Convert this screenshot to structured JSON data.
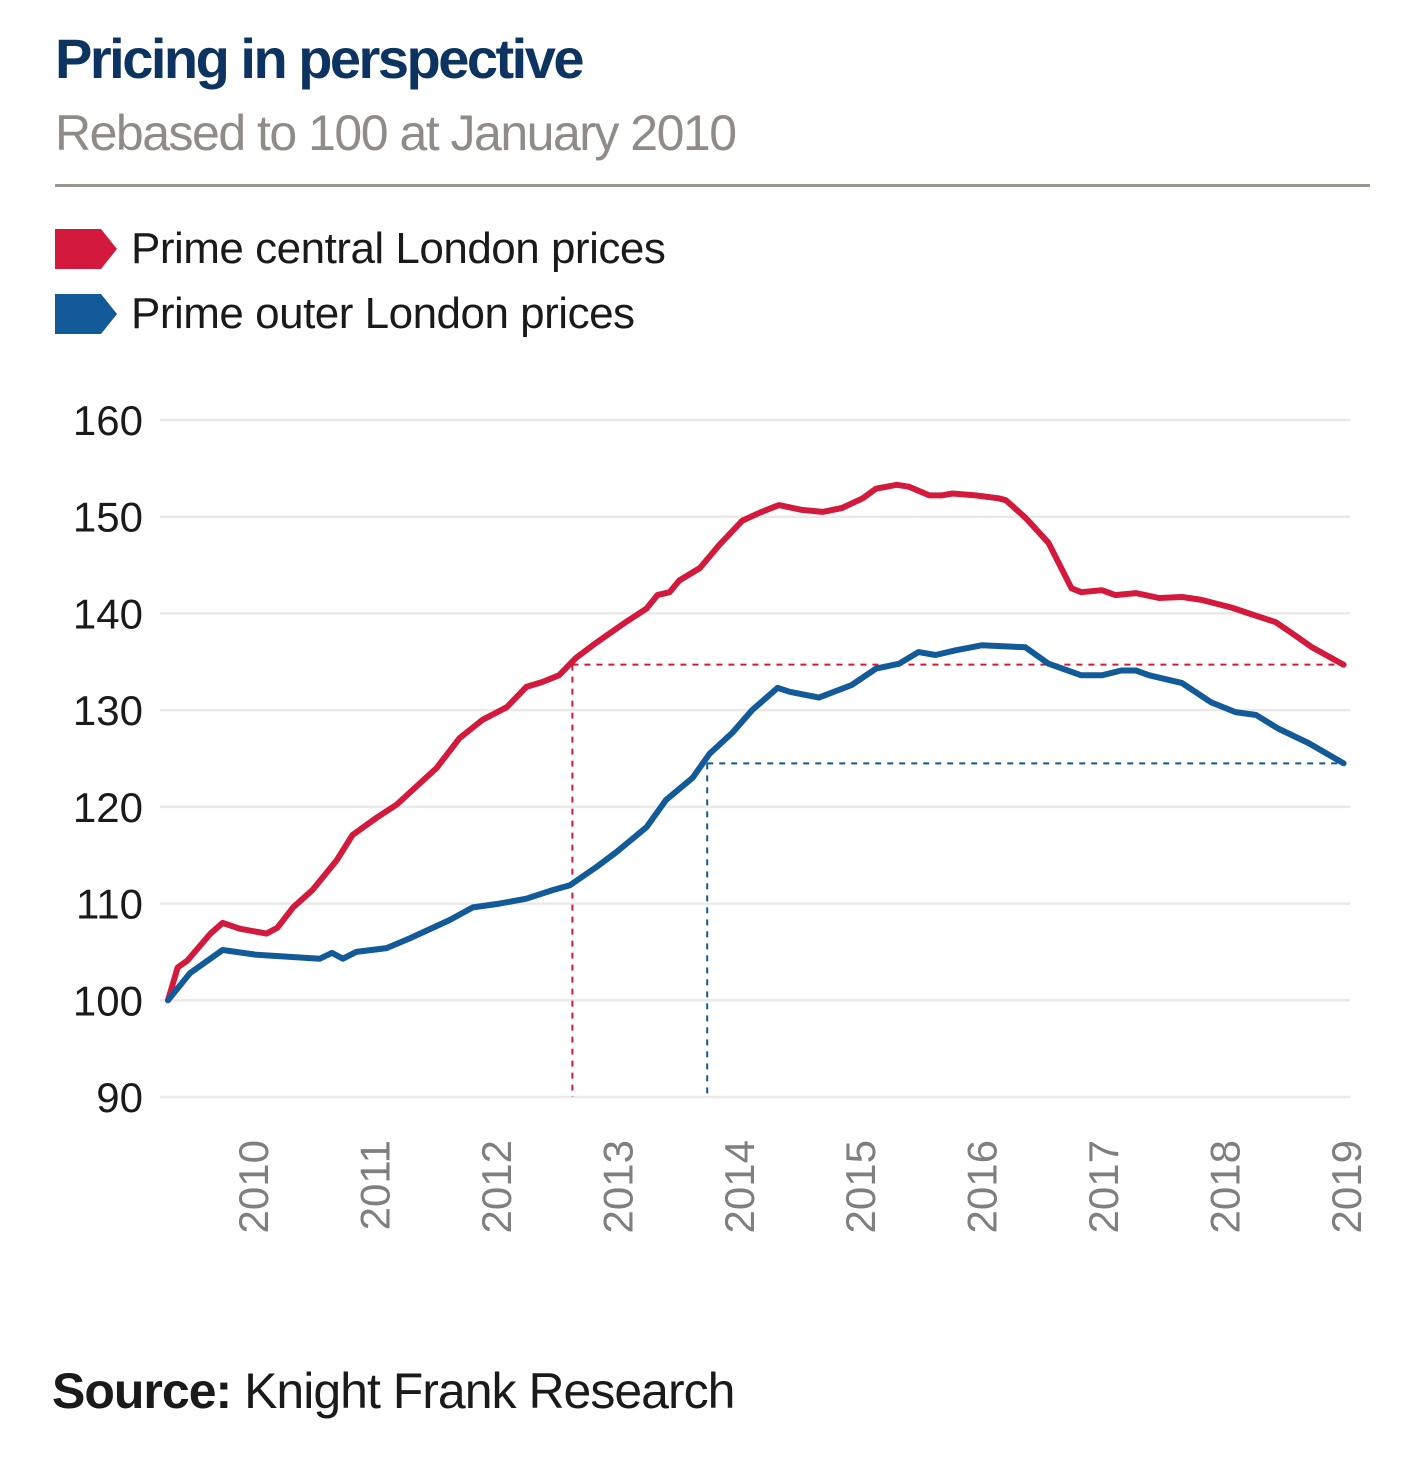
{
  "header": {
    "title": "Pricing in perspective",
    "subtitle": "Rebased to 100 at January 2010"
  },
  "legend": [
    {
      "label": "Prime central London prices",
      "color": "#d31a3c"
    },
    {
      "label": "Prime outer London prices",
      "color": "#125a98"
    }
  ],
  "footer": {
    "source_label": "Source:",
    "source_text": "Knight Frank Research"
  },
  "chart_data": {
    "type": "line",
    "title": "Pricing in perspective",
    "subtitle": "Rebased to 100 at January 2010",
    "xlabel": "",
    "ylabel": "",
    "x_unit": "decimal year",
    "xlim": [
      2010.0,
      2019.7
    ],
    "ylim": [
      90,
      160
    ],
    "yticks": [
      90,
      100,
      110,
      120,
      130,
      140,
      150,
      160
    ],
    "xticks": [
      {
        "label": "2010",
        "x": 2010.7
      },
      {
        "label": "2011",
        "x": 2011.7
      },
      {
        "label": "2012",
        "x": 2012.7
      },
      {
        "label": "2013",
        "x": 2013.7
      },
      {
        "label": "2014",
        "x": 2014.7
      },
      {
        "label": "2015",
        "x": 2015.7
      },
      {
        "label": "2016",
        "x": 2016.7
      },
      {
        "label": "2017",
        "x": 2017.7
      },
      {
        "label": "2018",
        "x": 2018.7
      },
      {
        "label": "2019",
        "x": 2019.7
      }
    ],
    "grid": "horizontal",
    "legend_position": "top-left",
    "series": [
      {
        "name": "Prime central London prices",
        "color": "#d31a3c",
        "points": [
          [
            2010.0,
            100.0
          ],
          [
            2010.08,
            103.4
          ],
          [
            2010.16,
            104.1
          ],
          [
            2010.35,
            106.9
          ],
          [
            2010.45,
            108.0
          ],
          [
            2010.59,
            107.4
          ],
          [
            2010.81,
            106.9
          ],
          [
            2010.9,
            107.5
          ],
          [
            2011.03,
            109.6
          ],
          [
            2011.19,
            111.4
          ],
          [
            2011.39,
            114.5
          ],
          [
            2011.52,
            117.1
          ],
          [
            2011.72,
            118.9
          ],
          [
            2011.88,
            120.2
          ],
          [
            2012.01,
            121.7
          ],
          [
            2012.21,
            124.0
          ],
          [
            2012.4,
            127.1
          ],
          [
            2012.59,
            129.0
          ],
          [
            2012.79,
            130.3
          ],
          [
            2012.95,
            132.4
          ],
          [
            2013.08,
            132.9
          ],
          [
            2013.22,
            133.6
          ],
          [
            2013.36,
            135.4
          ],
          [
            2013.53,
            137.0
          ],
          [
            2013.77,
            139.1
          ],
          [
            2013.94,
            140.5
          ],
          [
            2014.03,
            141.9
          ],
          [
            2014.13,
            142.2
          ],
          [
            2014.21,
            143.4
          ],
          [
            2014.38,
            144.7
          ],
          [
            2014.54,
            147.1
          ],
          [
            2014.73,
            149.6
          ],
          [
            2014.87,
            150.4
          ],
          [
            2015.03,
            151.2
          ],
          [
            2015.22,
            150.7
          ],
          [
            2015.39,
            150.5
          ],
          [
            2015.55,
            150.9
          ],
          [
            2015.72,
            151.9
          ],
          [
            2015.83,
            152.9
          ],
          [
            2016.0,
            153.3
          ],
          [
            2016.1,
            153.1
          ],
          [
            2016.27,
            152.2
          ],
          [
            2016.37,
            152.2
          ],
          [
            2016.46,
            152.4
          ],
          [
            2016.65,
            152.2
          ],
          [
            2016.84,
            151.9
          ],
          [
            2016.9,
            151.7
          ],
          [
            2017.06,
            149.9
          ],
          [
            2017.25,
            147.3
          ],
          [
            2017.44,
            142.6
          ],
          [
            2017.52,
            142.2
          ],
          [
            2017.69,
            142.4
          ],
          [
            2017.8,
            141.9
          ],
          [
            2017.97,
            142.1
          ],
          [
            2018.16,
            141.6
          ],
          [
            2018.35,
            141.7
          ],
          [
            2018.51,
            141.4
          ],
          [
            2018.76,
            140.6
          ],
          [
            2018.9,
            140.0
          ],
          [
            2019.12,
            139.1
          ],
          [
            2019.25,
            138.0
          ],
          [
            2019.42,
            136.5
          ],
          [
            2019.68,
            134.7
          ]
        ]
      },
      {
        "name": "Prime outer London prices",
        "color": "#125a98",
        "points": [
          [
            2010.0,
            100.0
          ],
          [
            2010.18,
            102.8
          ],
          [
            2010.45,
            105.2
          ],
          [
            2010.73,
            104.7
          ],
          [
            2011.25,
            104.3
          ],
          [
            2011.35,
            104.9
          ],
          [
            2011.44,
            104.3
          ],
          [
            2011.55,
            105.0
          ],
          [
            2011.8,
            105.4
          ],
          [
            2011.99,
            106.4
          ],
          [
            2012.32,
            108.3
          ],
          [
            2012.51,
            109.6
          ],
          [
            2012.73,
            110.0
          ],
          [
            2012.95,
            110.5
          ],
          [
            2013.17,
            111.4
          ],
          [
            2013.31,
            111.9
          ],
          [
            2013.53,
            113.8
          ],
          [
            2013.69,
            115.3
          ],
          [
            2013.94,
            117.9
          ],
          [
            2014.1,
            120.7
          ],
          [
            2014.32,
            123.0
          ],
          [
            2014.46,
            125.5
          ],
          [
            2014.65,
            127.7
          ],
          [
            2014.81,
            130.0
          ],
          [
            2015.02,
            132.3
          ],
          [
            2015.12,
            131.9
          ],
          [
            2015.36,
            131.3
          ],
          [
            2015.63,
            132.6
          ],
          [
            2015.83,
            134.3
          ],
          [
            2016.02,
            134.8
          ],
          [
            2016.18,
            136.0
          ],
          [
            2016.32,
            135.7
          ],
          [
            2016.49,
            136.2
          ],
          [
            2016.7,
            136.7
          ],
          [
            2017.06,
            136.5
          ],
          [
            2017.25,
            134.8
          ],
          [
            2017.52,
            133.6
          ],
          [
            2017.69,
            133.6
          ],
          [
            2017.85,
            134.1
          ],
          [
            2017.97,
            134.1
          ],
          [
            2018.08,
            133.6
          ],
          [
            2018.35,
            132.8
          ],
          [
            2018.59,
            130.8
          ],
          [
            2018.79,
            129.8
          ],
          [
            2018.96,
            129.5
          ],
          [
            2019.14,
            128.1
          ],
          [
            2019.39,
            126.6
          ],
          [
            2019.68,
            124.5
          ]
        ]
      }
    ],
    "reference_lines": [
      {
        "series": "Prime central London prices",
        "color": "#d31a3c",
        "x": 2013.33,
        "y": 134.7,
        "x_end": 2019.68
      },
      {
        "series": "Prime outer London prices",
        "color": "#125a98",
        "x": 2014.44,
        "y": 124.5,
        "x_end": 2019.68
      }
    ]
  }
}
